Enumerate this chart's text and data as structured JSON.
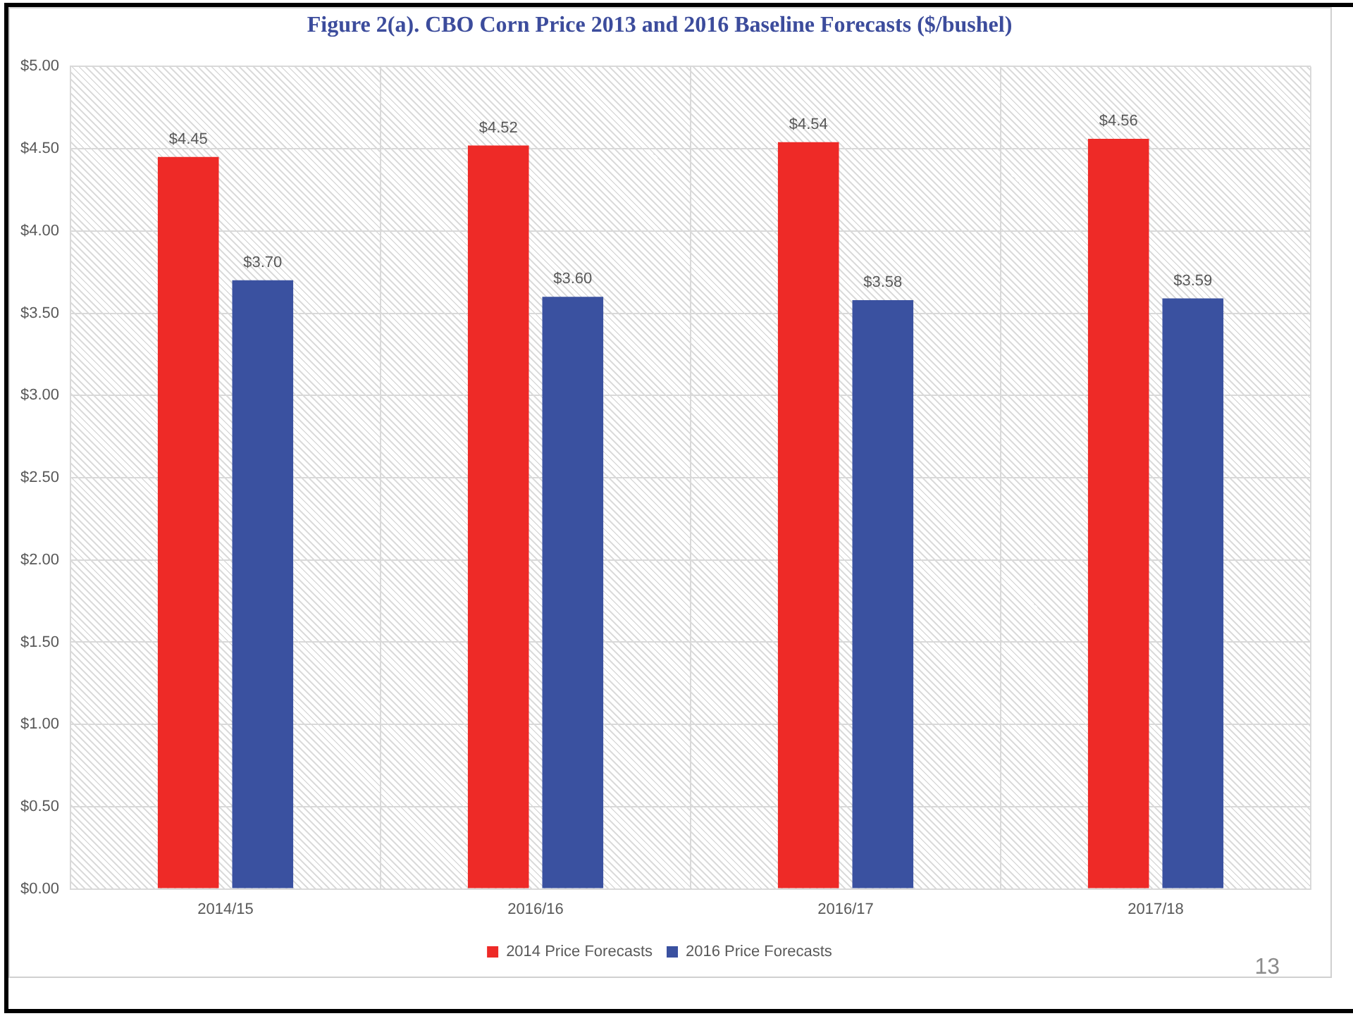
{
  "chart_data": {
    "type": "bar",
    "title": "Figure 2(a). CBO Corn Price 2013 and 2016 Baseline Forecasts ($/bushel)",
    "categories": [
      "2014/15",
      "2016/16",
      "2016/17",
      "2017/18"
    ],
    "series": [
      {
        "name": "2014 Price Forecasts",
        "color": "#ee2a27",
        "values": [
          4.45,
          4.52,
          4.54,
          4.56
        ],
        "value_labels": [
          "$4.45",
          "$4.52",
          "$4.54",
          "$4.56"
        ]
      },
      {
        "name": "2016 Price Forecasts",
        "color": "#3a51a0",
        "values": [
          3.7,
          3.6,
          3.58,
          3.59
        ],
        "value_labels": [
          "$3.70",
          "$3.60",
          "$3.58",
          "$3.59"
        ]
      }
    ],
    "ylim": [
      0,
      5
    ],
    "yticks": [
      {
        "value": 0,
        "label": "$0.00"
      },
      {
        "value": 0.5,
        "label": "$0.50"
      },
      {
        "value": 1,
        "label": "$1.00"
      },
      {
        "value": 1.5,
        "label": "$1.50"
      },
      {
        "value": 2,
        "label": "$2.00"
      },
      {
        "value": 2.5,
        "label": "$2.50"
      },
      {
        "value": 3,
        "label": "$3.00"
      },
      {
        "value": 3.5,
        "label": "$3.50"
      },
      {
        "value": 4,
        "label": "$4.00"
      },
      {
        "value": 4.5,
        "label": "$4.50"
      },
      {
        "value": 5,
        "label": "$5.00"
      }
    ],
    "grid": true,
    "legend": "bottom",
    "annotations": [
      "13"
    ]
  }
}
